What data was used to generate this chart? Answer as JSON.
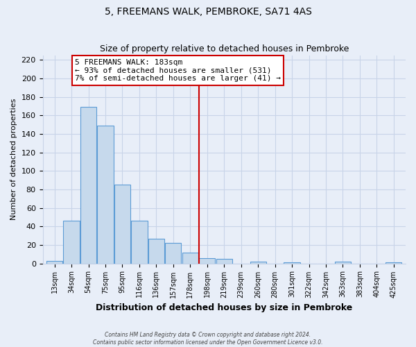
{
  "title": "5, FREEMANS WALK, PEMBROKE, SA71 4AS",
  "subtitle": "Size of property relative to detached houses in Pembroke",
  "xlabel": "Distribution of detached houses by size in Pembroke",
  "ylabel": "Number of detached properties",
  "bin_labels": [
    "13sqm",
    "34sqm",
    "54sqm",
    "75sqm",
    "95sqm",
    "116sqm",
    "136sqm",
    "157sqm",
    "178sqm",
    "198sqm",
    "219sqm",
    "239sqm",
    "260sqm",
    "280sqm",
    "301sqm",
    "322sqm",
    "342sqm",
    "363sqm",
    "383sqm",
    "404sqm",
    "425sqm"
  ],
  "bar_heights": [
    3,
    46,
    169,
    149,
    85,
    46,
    27,
    22,
    12,
    6,
    5,
    0,
    2,
    0,
    1,
    0,
    0,
    2,
    0,
    0,
    1
  ],
  "bar_color": "#c6d9ec",
  "bar_edge_color": "#5b9bd5",
  "vline_x": 8.5,
  "vline_color": "#cc0000",
  "annotation_line1": "5 FREEMANS WALK: 183sqm",
  "annotation_line2": "← 93% of detached houses are smaller (531)",
  "annotation_line3": "7% of semi-detached houses are larger (41) →",
  "annotation_box_edge": "#cc0000",
  "ylim": [
    0,
    225
  ],
  "yticks": [
    0,
    20,
    40,
    60,
    80,
    100,
    120,
    140,
    160,
    180,
    200,
    220
  ],
  "grid_color": "#c8d4e8",
  "footer_line1": "Contains HM Land Registry data © Crown copyright and database right 2024.",
  "footer_line2": "Contains public sector information licensed under the Open Government Licence v3.0.",
  "bg_color": "#e8eef8"
}
